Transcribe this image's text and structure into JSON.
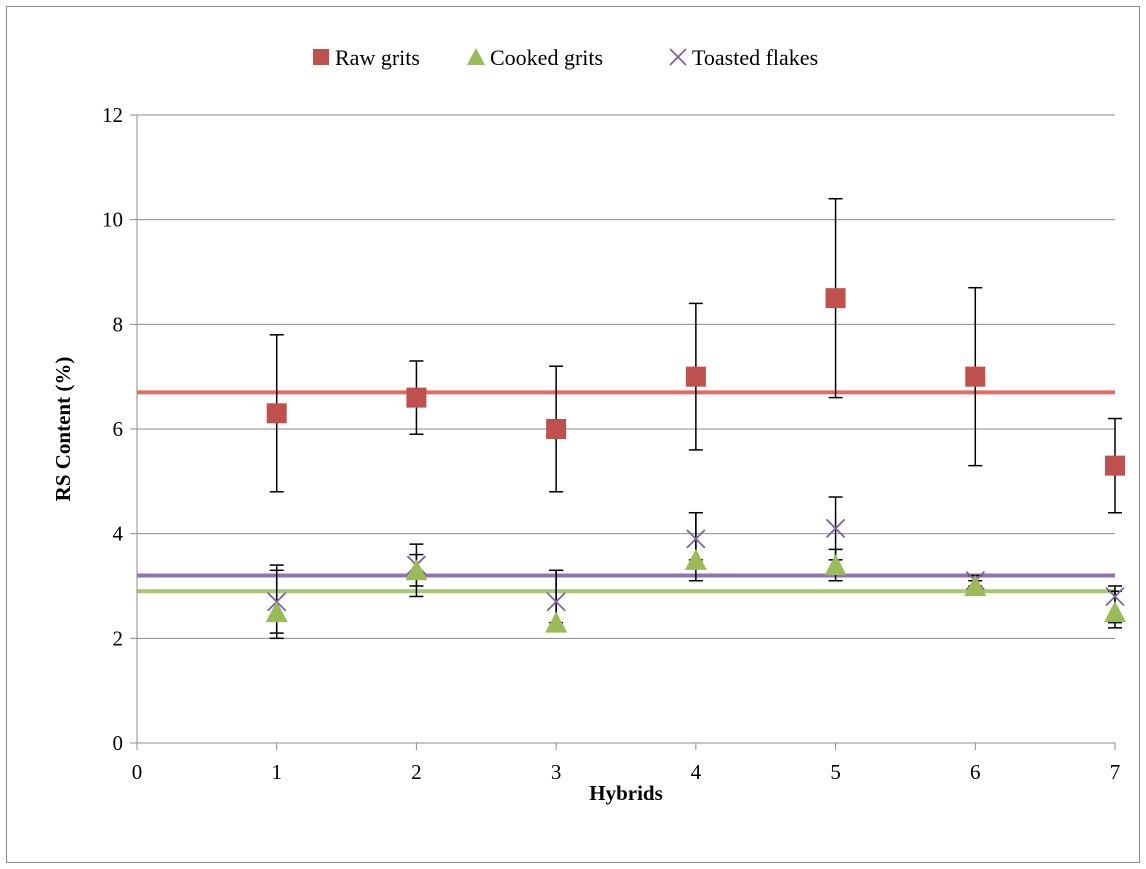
{
  "chart_data": {
    "type": "scatter",
    "title": "",
    "xlabel": "Hybrids",
    "ylabel": "RS Content (%)",
    "xlim": [
      0,
      7
    ],
    "ylim": [
      0,
      12
    ],
    "x_ticks": [
      "0",
      "1",
      "2",
      "3",
      "4",
      "5",
      "6",
      "7"
    ],
    "y_ticks": [
      "0",
      "2",
      "4",
      "6",
      "8",
      "10",
      "12"
    ],
    "grid": "horizontal",
    "legend_position": "top",
    "series": [
      {
        "name": "Raw grits",
        "marker": "square",
        "color": "#c0504d",
        "x": [
          1,
          2,
          3,
          4,
          5,
          6,
          7
        ],
        "y": [
          6.3,
          6.6,
          6.0,
          7.0,
          8.5,
          7.0,
          5.3
        ],
        "err_low": [
          4.8,
          5.9,
          4.8,
          5.6,
          6.6,
          5.3,
          4.4
        ],
        "err_high": [
          7.8,
          7.3,
          7.2,
          8.4,
          10.4,
          8.7,
          6.2
        ],
        "mean_line": 6.7,
        "line_color": "#e06c63"
      },
      {
        "name": "Cooked grits",
        "marker": "triangle",
        "color": "#9bbb59",
        "x": [
          1,
          2,
          3,
          4,
          5,
          6,
          7
        ],
        "y": [
          2.5,
          3.3,
          2.3,
          3.5,
          3.4,
          3.0,
          2.5
        ],
        "err_low": [
          2.0,
          2.8,
          2.3,
          3.1,
          3.1,
          2.9,
          2.2
        ],
        "err_high": [
          3.4,
          3.8,
          3.3,
          4.4,
          3.7,
          3.1,
          2.9
        ],
        "mean_line": 2.9,
        "line_color": "#a6c86e"
      },
      {
        "name": "Toasted flakes",
        "marker": "x",
        "color": "#8064a2",
        "x": [
          1,
          2,
          3,
          4,
          5,
          6,
          7
        ],
        "y": [
          2.7,
          3.4,
          2.7,
          3.9,
          4.1,
          3.1,
          2.8
        ],
        "err_low": [
          2.1,
          3.0,
          2.2,
          3.5,
          3.5,
          3.0,
          2.3
        ],
        "err_high": [
          3.3,
          3.6,
          3.3,
          4.4,
          4.7,
          3.2,
          3.0
        ],
        "mean_line": 3.2,
        "line_color": "#8f73b4"
      }
    ]
  }
}
